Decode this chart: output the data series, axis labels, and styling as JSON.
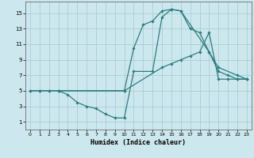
{
  "background_color": "#cce8ee",
  "grid_color": "#aacdd6",
  "line_color": "#2d7d7d",
  "xlabel": "Humidex (Indice chaleur)",
  "xlim": [
    -0.5,
    23.5
  ],
  "ylim": [
    0,
    16.5
  ],
  "xticks": [
    0,
    1,
    2,
    3,
    4,
    5,
    6,
    7,
    8,
    9,
    10,
    11,
    12,
    13,
    14,
    15,
    16,
    17,
    18,
    19,
    20,
    21,
    22,
    23
  ],
  "yticks": [
    1,
    3,
    5,
    7,
    9,
    11,
    13,
    15
  ],
  "curves": [
    {
      "x": [
        0,
        1,
        2,
        3,
        10,
        14,
        15,
        16,
        17,
        18,
        19,
        20,
        21,
        22,
        23
      ],
      "y": [
        5,
        5,
        5,
        5,
        5,
        8,
        8.5,
        9,
        9.5,
        10,
        12.5,
        6.5,
        6.5,
        6.5,
        6.5
      ]
    },
    {
      "x": [
        0,
        1,
        2,
        3,
        10,
        11,
        12,
        13,
        14,
        15,
        16,
        17,
        18,
        19,
        20,
        21,
        22,
        23
      ],
      "y": [
        5,
        5,
        5,
        5,
        5,
        10.5,
        13.5,
        14,
        15.3,
        15.5,
        15.3,
        13,
        12.5,
        10,
        7.5,
        7,
        6.5,
        6.5
      ]
    },
    {
      "x": [
        3,
        4,
        5,
        6,
        7,
        8,
        9,
        10,
        11,
        13,
        14,
        15,
        16,
        19,
        20,
        22,
        23
      ],
      "y": [
        5,
        4.5,
        3.5,
        3.0,
        2.7,
        2.0,
        1.5,
        1.5,
        7.5,
        7.5,
        14.5,
        15.5,
        15.3,
        10,
        8,
        7,
        6.5
      ]
    }
  ]
}
